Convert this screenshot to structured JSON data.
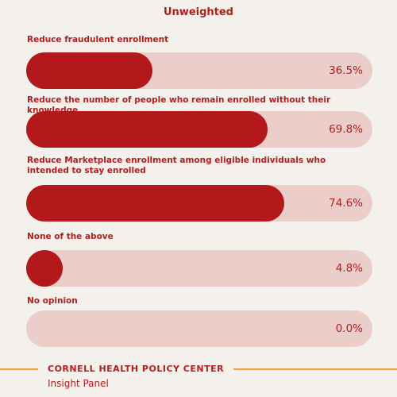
{
  "title": "Unweighted",
  "chart_data": {
    "type": "bar",
    "orientation": "horizontal",
    "categories": [
      "Reduce fraudulent enrollment",
      "Reduce the number of people who remain enrolled without their knowledge",
      "Reduce Marketplace enrollment among eligible individuals who intended to stay enrolled",
      "None of the above",
      "No opinion"
    ],
    "values": [
      36.5,
      69.8,
      74.6,
      4.8,
      0.0
    ],
    "value_labels": [
      "36.5%",
      "69.8%",
      "74.6%",
      "4.8%",
      "0.0%"
    ],
    "xlim": [
      0,
      100
    ],
    "title": "Unweighted",
    "grid": false,
    "legend": "none"
  },
  "colors": {
    "background": "#f4f1ec",
    "bar_fill": "#b3191b",
    "bar_track": "#ebcdc9",
    "text": "#b01e1e",
    "footer_rule": "#f2a13a"
  },
  "footer": {
    "org": "CORNELL HEALTH POLICY CENTER",
    "sub": "Insight Panel"
  }
}
